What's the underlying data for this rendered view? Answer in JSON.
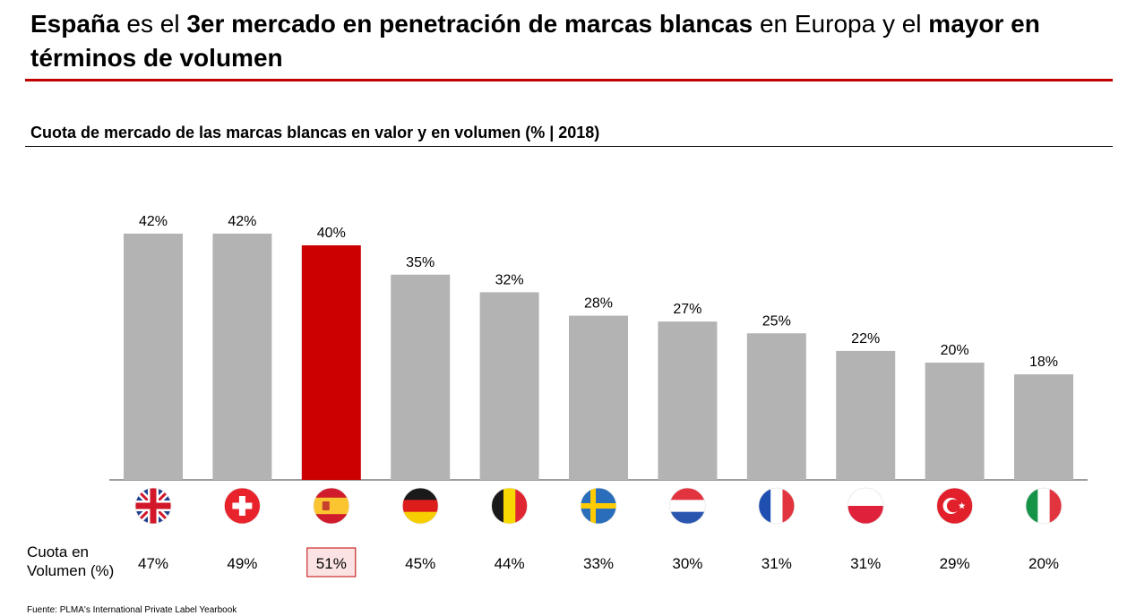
{
  "header": {
    "title_parts": [
      {
        "text": "España",
        "bold": true
      },
      {
        "text": " es el ",
        "bold": false
      },
      {
        "text": "3er mercado en penetración de marcas blancas",
        "bold": true
      },
      {
        "text": " en Europa y el ",
        "bold": false
      },
      {
        "text": "mayor en términos de volumen",
        "bold": true
      }
    ],
    "subtitle": "Cuota de mercado de las marcas blancas en valor y en volumen (% | 2018)"
  },
  "volume_row": {
    "label_line1": "Cuota en",
    "label_line2": "Volumen (%)"
  },
  "footer": {
    "source": "Fuente: PLMA's International Private Label Yearbook"
  },
  "colors": {
    "bar_default": "#b3b3b3",
    "bar_highlight": "#cc0000",
    "highlight_box_fill": "#fbe3e3",
    "highlight_box_border": "#c00000",
    "title_rule": "#c00000"
  },
  "chart_data": {
    "type": "bar",
    "categories": [
      "uk-flag-icon",
      "switzerland-flag-icon",
      "spain-flag-icon",
      "germany-flag-icon",
      "belgium-flag-icon",
      "sweden-flag-icon",
      "netherlands-flag-icon",
      "france-flag-icon",
      "poland-flag-icon",
      "turkey-flag-icon",
      "italy-flag-icon"
    ],
    "flags": [
      "uk",
      "ch",
      "es",
      "de",
      "be",
      "se",
      "nl",
      "fr",
      "pl",
      "tr",
      "it"
    ],
    "value_share": [
      42,
      42,
      40,
      35,
      32,
      28,
      27,
      25,
      22,
      20,
      18
    ],
    "value_labels": [
      "42%",
      "42%",
      "40%",
      "35%",
      "32%",
      "28%",
      "27%",
      "25%",
      "22%",
      "20%",
      "18%"
    ],
    "volume_share": [
      47,
      49,
      51,
      45,
      44,
      33,
      30,
      31,
      31,
      29,
      20
    ],
    "volume_labels": [
      "47%",
      "49%",
      "51%",
      "45%",
      "44%",
      "33%",
      "30%",
      "31%",
      "31%",
      "29%",
      "20%"
    ],
    "highlight_index": 2,
    "ylim": [
      0,
      45
    ],
    "grid": false,
    "title": "Cuota de mercado de las marcas blancas en valor y en volumen (% | 2018)",
    "xlabel": "",
    "ylabel": ""
  }
}
